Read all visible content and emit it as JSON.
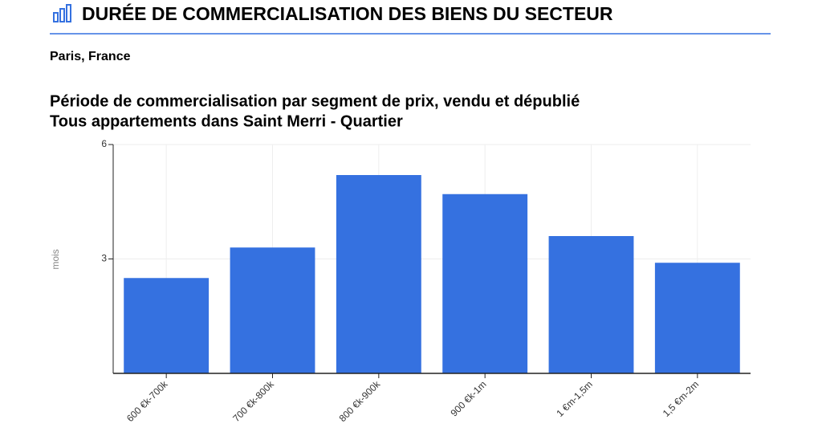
{
  "header": {
    "title": "DURÉE DE COMMERCIALISATION DES BIENS DU SECTEUR",
    "location": "Paris, France"
  },
  "chart_data": {
    "type": "bar",
    "title": "Période de commercialisation par segment de prix, vendu et dépublié",
    "subtitle": "Tous appartements dans Saint Merri - Quartier",
    "y_label": "mois",
    "categories": [
      "600 €k-700k",
      "700 €k-800k",
      "800 €k-900k",
      "900 €k-1m",
      "1 €m-1,5m",
      "1,5 €m-2m"
    ],
    "values": [
      2.5,
      3.3,
      5.2,
      4.7,
      3.6,
      2.9
    ],
    "color": "#3571e0",
    "ylim": [
      0,
      6
    ],
    "yticks": [
      3,
      6
    ],
    "grid": true
  }
}
